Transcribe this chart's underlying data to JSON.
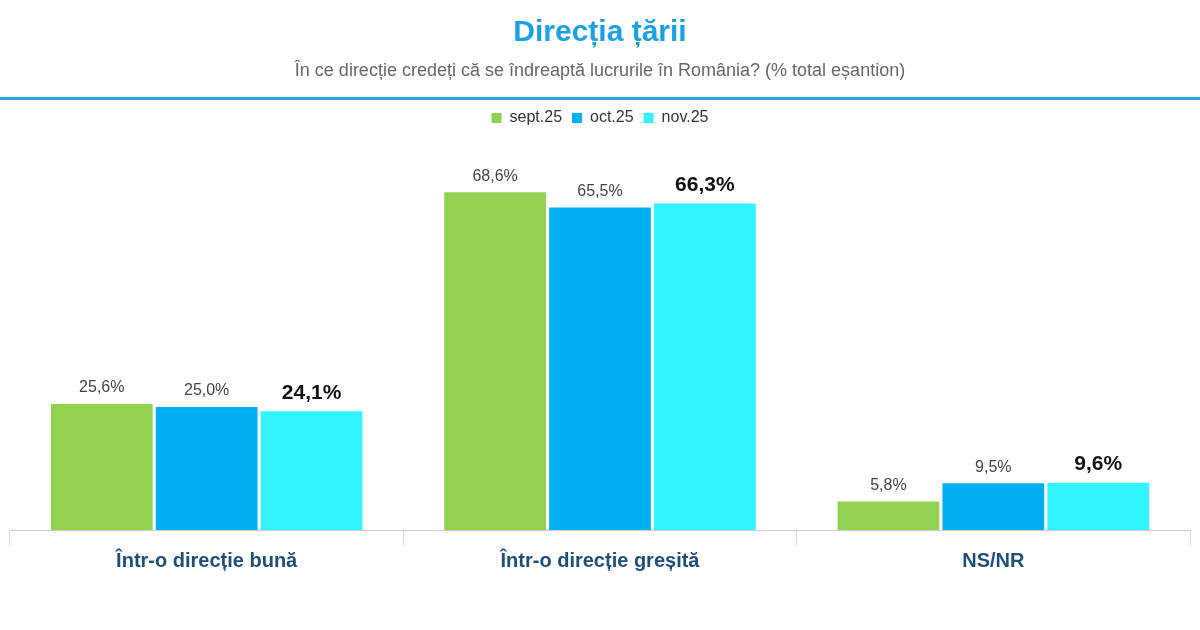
{
  "chart_data": {
    "type": "bar",
    "title": "Direcția țării",
    "subtitle": "În ce direcție credeți că se îndreaptă lucrurile în România? (% total eșantion)",
    "categories": [
      "Într-o direcție bună",
      "Într-o direcție greșită",
      "NS/NR"
    ],
    "series": [
      {
        "name": "sept.25",
        "color": "#92d050",
        "values": [
          25.6,
          68.6,
          5.8
        ],
        "value_labels": [
          "25,6%",
          "68,6%",
          "5,8%"
        ]
      },
      {
        "name": "oct.25",
        "color": "#00b0f0",
        "values": [
          25.0,
          65.5,
          9.5
        ],
        "value_labels": [
          "25,0%",
          "65,5%",
          "9,5%"
        ]
      },
      {
        "name": "nov.25",
        "color": "#33f3ff",
        "values": [
          24.1,
          66.3,
          9.6
        ],
        "value_labels": [
          "24,1%",
          "66,3%",
          "9,6%"
        ]
      }
    ],
    "legend": "top",
    "grid": false
  }
}
